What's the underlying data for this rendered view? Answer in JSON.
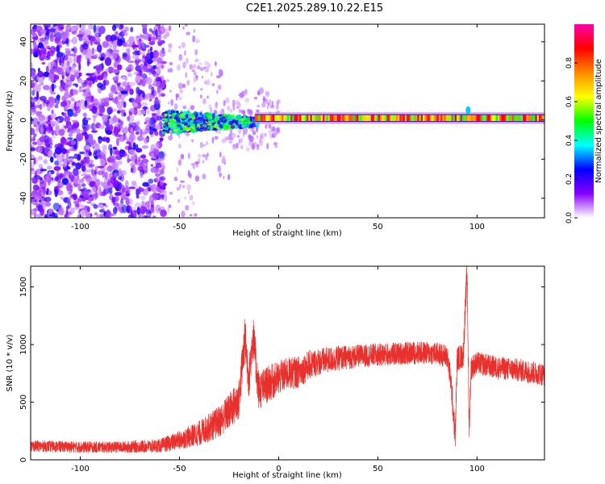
{
  "title": "C2E1.2025.289.10.22.E15",
  "chart_data": [
    {
      "type": "heatmap",
      "title": "C2E1.2025.289.10.22.E15",
      "xlabel": "Height of straight line (km)",
      "ylabel": "Frequency (Hz)",
      "xlim": [
        -125,
        134
      ],
      "ylim": [
        -50,
        49
      ],
      "xticks": [
        -100,
        -50,
        0,
        50,
        100
      ],
      "yticks": [
        -40,
        -20,
        0,
        20,
        40
      ],
      "colorbar": {
        "label": "Normalized spectral amplitude",
        "range": [
          0,
          1
        ],
        "ticks": [
          "0.0",
          "0.2",
          "0.4",
          "0.6",
          "0.8"
        ],
        "tick_values": [
          0.0,
          0.2,
          0.4,
          0.6,
          0.8
        ],
        "colormap": [
          "#ffffff",
          "#8800ff",
          "#0000ff",
          "#00ffff",
          "#00ff00",
          "#ffff00",
          "#ff8800",
          "#ff0000",
          "#ff00aa"
        ]
      },
      "regions": [
        {
          "x_range": [
            -125,
            -58
          ],
          "freq_range": [
            -50,
            49
          ],
          "amplitude": "0.05-0.25",
          "pattern": "scattered blobs"
        },
        {
          "x_range": [
            -58,
            -10
          ],
          "freq_range": [
            -12,
            8
          ],
          "amplitude": "0.2-0.6",
          "pattern": "band"
        },
        {
          "x_range": [
            -10,
            134
          ],
          "freq_center": 1,
          "amplitude": "0.6-0.95",
          "pattern": "narrow line"
        }
      ]
    },
    {
      "type": "line",
      "xlabel": "Height of straight line (km)",
      "ylabel": "SNR (10 * v/v)",
      "xlim": [
        -125,
        134
      ],
      "ylim": [
        0,
        1680
      ],
      "xticks": [
        -100,
        -50,
        0,
        50,
        100
      ],
      "yticks": [
        0,
        500,
        1000,
        1500
      ],
      "color": "#e8302c",
      "series": [
        {
          "name": "SNR",
          "x": [
            -125,
            -100,
            -80,
            -60,
            -50,
            -40,
            -30,
            -25,
            -20,
            -17,
            -15,
            -13,
            -10,
            -5,
            0,
            5,
            10,
            15,
            20,
            30,
            40,
            50,
            60,
            70,
            80,
            85,
            87,
            89,
            90,
            93,
            95,
            96,
            97,
            100,
            110,
            120,
            134
          ],
          "y": [
            120,
            110,
            110,
            120,
            170,
            230,
            330,
            420,
            520,
            1060,
            700,
            1080,
            600,
            660,
            710,
            750,
            760,
            820,
            850,
            880,
            900,
            910,
            920,
            930,
            920,
            900,
            650,
            200,
            880,
            900,
            1650,
            260,
            800,
            840,
            800,
            780,
            740
          ],
          "noise": [
            50,
            50,
            50,
            60,
            80,
            110,
            140,
            160,
            180,
            200,
            180,
            200,
            170,
            160,
            150,
            140,
            140,
            130,
            120,
            110,
            100,
            100,
            100,
            100,
            100,
            100,
            120,
            120,
            110,
            110,
            140,
            140,
            110,
            100,
            100,
            100,
            100
          ]
        }
      ]
    }
  ]
}
